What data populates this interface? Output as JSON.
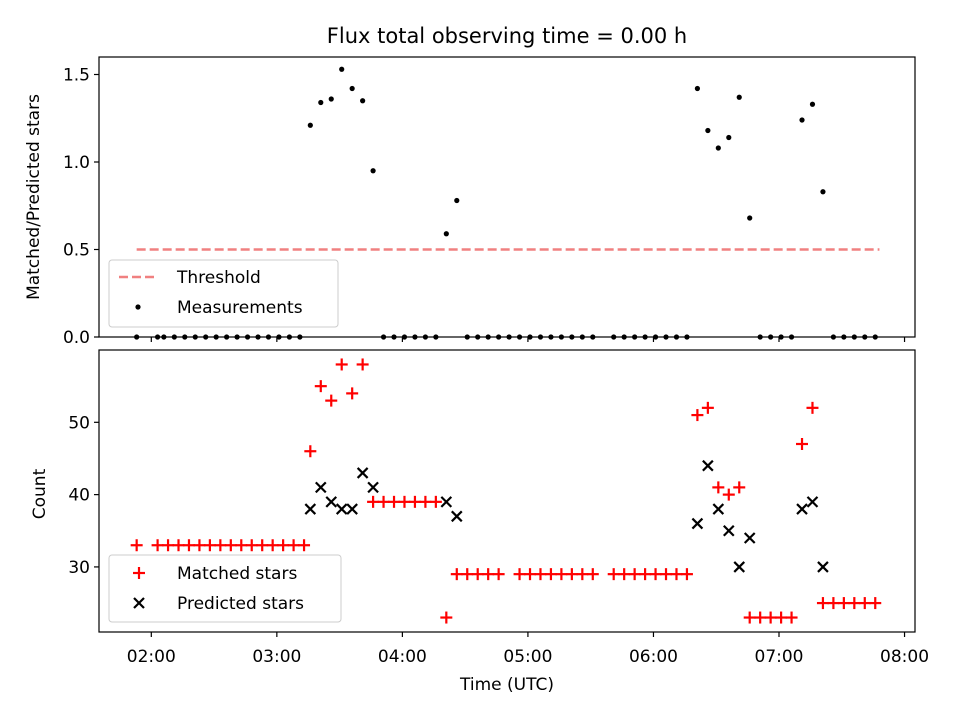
{
  "chart_data": [
    {
      "type": "scatter",
      "title": "Flux total observing time = 0.00 h",
      "ylabel": "Matched/Predicted stars",
      "ylim": [
        0,
        1.6
      ],
      "yticks": [
        "0.0",
        "0.5",
        "1.0",
        "1.5"
      ],
      "legend": {
        "position": "lower-left",
        "entries": [
          "Threshold",
          "Measurements"
        ]
      },
      "threshold": {
        "name": "Threshold",
        "value": 0.5,
        "x_start": "01:53",
        "x_end": "07:48",
        "color": "#f08080"
      },
      "series": [
        {
          "name": "Measurements",
          "color": "#000000",
          "points": [
            [
              "01:53",
              0
            ],
            [
              "02:03",
              0
            ],
            [
              "02:06",
              0
            ],
            [
              "02:11",
              0
            ],
            [
              "02:16",
              0
            ],
            [
              "02:21",
              0
            ],
            [
              "02:26",
              0
            ],
            [
              "02:31",
              0
            ],
            [
              "02:36",
              0
            ],
            [
              "02:41",
              0
            ],
            [
              "02:46",
              0
            ],
            [
              "02:51",
              0
            ],
            [
              "02:56",
              0
            ],
            [
              "03:01",
              0
            ],
            [
              "03:06",
              0
            ],
            [
              "03:11",
              0
            ],
            [
              "03:16",
              1.21
            ],
            [
              "03:21",
              1.34
            ],
            [
              "03:26",
              1.36
            ],
            [
              "03:31",
              1.53
            ],
            [
              "03:36",
              1.42
            ],
            [
              "03:41",
              1.35
            ],
            [
              "03:46",
              0.95
            ],
            [
              "03:51",
              0
            ],
            [
              "03:56",
              0
            ],
            [
              "04:01",
              0
            ],
            [
              "04:06",
              0
            ],
            [
              "04:11",
              0
            ],
            [
              "04:16",
              0
            ],
            [
              "04:21",
              0.59
            ],
            [
              "04:26",
              0.78
            ],
            [
              "04:31",
              0
            ],
            [
              "04:36",
              0
            ],
            [
              "04:41",
              0
            ],
            [
              "04:46",
              0
            ],
            [
              "04:51",
              0
            ],
            [
              "04:56",
              0
            ],
            [
              "05:01",
              0
            ],
            [
              "05:06",
              0
            ],
            [
              "05:11",
              0
            ],
            [
              "05:16",
              0
            ],
            [
              "05:21",
              0
            ],
            [
              "05:26",
              0
            ],
            [
              "05:31",
              0
            ],
            [
              "05:41",
              0
            ],
            [
              "05:46",
              0
            ],
            [
              "05:51",
              0
            ],
            [
              "05:56",
              0
            ],
            [
              "06:01",
              0
            ],
            [
              "06:06",
              0
            ],
            [
              "06:11",
              0
            ],
            [
              "06:16",
              0
            ],
            [
              "06:21",
              1.42
            ],
            [
              "06:26",
              1.18
            ],
            [
              "06:31",
              1.08
            ],
            [
              "06:36",
              1.14
            ],
            [
              "06:41",
              1.37
            ],
            [
              "06:46",
              0.68
            ],
            [
              "06:51",
              0
            ],
            [
              "06:56",
              0
            ],
            [
              "07:01",
              0
            ],
            [
              "07:06",
              0
            ],
            [
              "07:11",
              1.24
            ],
            [
              "07:16",
              1.33
            ],
            [
              "07:21",
              0.83
            ],
            [
              "07:26",
              0
            ],
            [
              "07:31",
              0
            ],
            [
              "07:36",
              0
            ],
            [
              "07:41",
              0
            ],
            [
              "07:46",
              0
            ]
          ]
        }
      ]
    },
    {
      "type": "scatter",
      "xlabel": "Time (UTC)",
      "ylabel": "Count",
      "xlim": [
        "01:35",
        "08:05"
      ],
      "xticks": [
        "02:00",
        "03:00",
        "04:00",
        "05:00",
        "06:00",
        "07:00",
        "08:00"
      ],
      "ylim": [
        21,
        60
      ],
      "yticks": [
        "30",
        "40",
        "50"
      ],
      "legend": {
        "position": "lower-left",
        "entries": [
          "Matched stars",
          "Predicted stars"
        ]
      },
      "series": [
        {
          "name": "Matched stars",
          "marker": "plus",
          "color": "#ff0000",
          "points": [
            [
              "01:53",
              33
            ],
            [
              "02:03",
              33
            ],
            [
              "02:08",
              33
            ],
            [
              "02:13",
              33
            ],
            [
              "02:18",
              33
            ],
            [
              "02:23",
              33
            ],
            [
              "02:28",
              33
            ],
            [
              "02:33",
              33
            ],
            [
              "02:38",
              33
            ],
            [
              "02:43",
              33
            ],
            [
              "02:48",
              33
            ],
            [
              "02:53",
              33
            ],
            [
              "02:58",
              33
            ],
            [
              "03:03",
              33
            ],
            [
              "03:08",
              33
            ],
            [
              "03:13",
              33
            ],
            [
              "03:16",
              46
            ],
            [
              "03:21",
              55
            ],
            [
              "03:26",
              53
            ],
            [
              "03:31",
              58
            ],
            [
              "03:36",
              54
            ],
            [
              "03:41",
              58
            ],
            [
              "03:46",
              39
            ],
            [
              "03:51",
              39
            ],
            [
              "03:56",
              39
            ],
            [
              "04:01",
              39
            ],
            [
              "04:06",
              39
            ],
            [
              "04:11",
              39
            ],
            [
              "04:16",
              39
            ],
            [
              "04:21",
              23
            ],
            [
              "04:26",
              29
            ],
            [
              "04:31",
              29
            ],
            [
              "04:36",
              29
            ],
            [
              "04:41",
              29
            ],
            [
              "04:46",
              29
            ],
            [
              "04:56",
              29
            ],
            [
              "05:01",
              29
            ],
            [
              "05:06",
              29
            ],
            [
              "05:11",
              29
            ],
            [
              "05:16",
              29
            ],
            [
              "05:21",
              29
            ],
            [
              "05:26",
              29
            ],
            [
              "05:31",
              29
            ],
            [
              "05:41",
              29
            ],
            [
              "05:46",
              29
            ],
            [
              "05:51",
              29
            ],
            [
              "05:56",
              29
            ],
            [
              "06:01",
              29
            ],
            [
              "06:06",
              29
            ],
            [
              "06:11",
              29
            ],
            [
              "06:16",
              29
            ],
            [
              "06:21",
              51
            ],
            [
              "06:26",
              52
            ],
            [
              "06:31",
              41
            ],
            [
              "06:36",
              40
            ],
            [
              "06:41",
              41
            ],
            [
              "06:46",
              23
            ],
            [
              "06:51",
              23
            ],
            [
              "06:56",
              23
            ],
            [
              "07:01",
              23
            ],
            [
              "07:06",
              23
            ],
            [
              "07:11",
              47
            ],
            [
              "07:16",
              52
            ],
            [
              "07:21",
              25
            ],
            [
              "07:26",
              25
            ],
            [
              "07:31",
              25
            ],
            [
              "07:36",
              25
            ],
            [
              "07:41",
              25
            ],
            [
              "07:46",
              25
            ]
          ]
        },
        {
          "name": "Predicted stars",
          "marker": "x",
          "color": "#000000",
          "points": [
            [
              "03:16",
              38
            ],
            [
              "03:21",
              41
            ],
            [
              "03:26",
              39
            ],
            [
              "03:31",
              38
            ],
            [
              "03:36",
              38
            ],
            [
              "03:41",
              43
            ],
            [
              "03:46",
              41
            ],
            [
              "04:21",
              39
            ],
            [
              "04:26",
              37
            ],
            [
              "06:21",
              36
            ],
            [
              "06:26",
              44
            ],
            [
              "06:31",
              38
            ],
            [
              "06:36",
              35
            ],
            [
              "06:41",
              30
            ],
            [
              "06:46",
              34
            ],
            [
              "07:11",
              38
            ],
            [
              "07:16",
              39
            ],
            [
              "07:21",
              30
            ]
          ]
        }
      ]
    }
  ]
}
